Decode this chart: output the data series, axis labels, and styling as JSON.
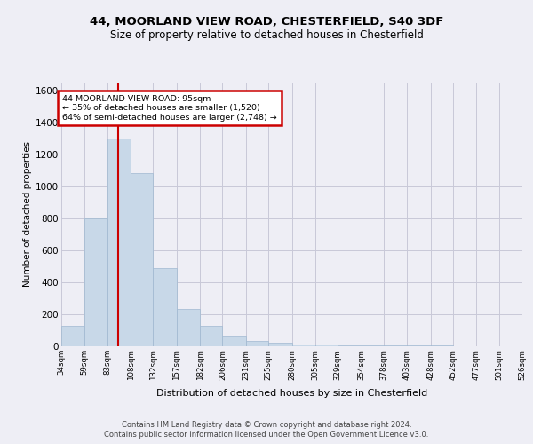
{
  "title_line1": "44, MOORLAND VIEW ROAD, CHESTERFIELD, S40 3DF",
  "title_line2": "Size of property relative to detached houses in Chesterfield",
  "xlabel": "Distribution of detached houses by size in Chesterfield",
  "ylabel": "Number of detached properties",
  "annotation_title": "44 MOORLAND VIEW ROAD: 95sqm",
  "annotation_line2": "← 35% of detached houses are smaller (1,520)",
  "annotation_line3": "64% of semi-detached houses are larger (2,748) →",
  "footer_line1": "Contains HM Land Registry data © Crown copyright and database right 2024.",
  "footer_line2": "Contains public sector information licensed under the Open Government Licence v3.0.",
  "property_size": 95,
  "bin_edges": [
    34,
    59,
    83,
    108,
    132,
    157,
    182,
    206,
    231,
    255,
    280,
    305,
    329,
    354,
    378,
    403,
    428,
    452,
    477,
    501,
    526
  ],
  "bar_heights": [
    130,
    800,
    1300,
    1080,
    490,
    235,
    125,
    65,
    35,
    22,
    12,
    10,
    8,
    6,
    5,
    4,
    3,
    2,
    2,
    2
  ],
  "bar_color": "#c8d8e8",
  "bar_edge_color": "#a0b8d0",
  "vline_color": "#cc0000",
  "vline_x": 95,
  "annotation_box_color": "#cc0000",
  "annotation_bg": "#ffffff",
  "grid_color": "#c8c8d8",
  "ylim": [
    0,
    1650
  ],
  "yticks": [
    0,
    200,
    400,
    600,
    800,
    1000,
    1200,
    1400,
    1600
  ],
  "background_color": "#eeeef5"
}
